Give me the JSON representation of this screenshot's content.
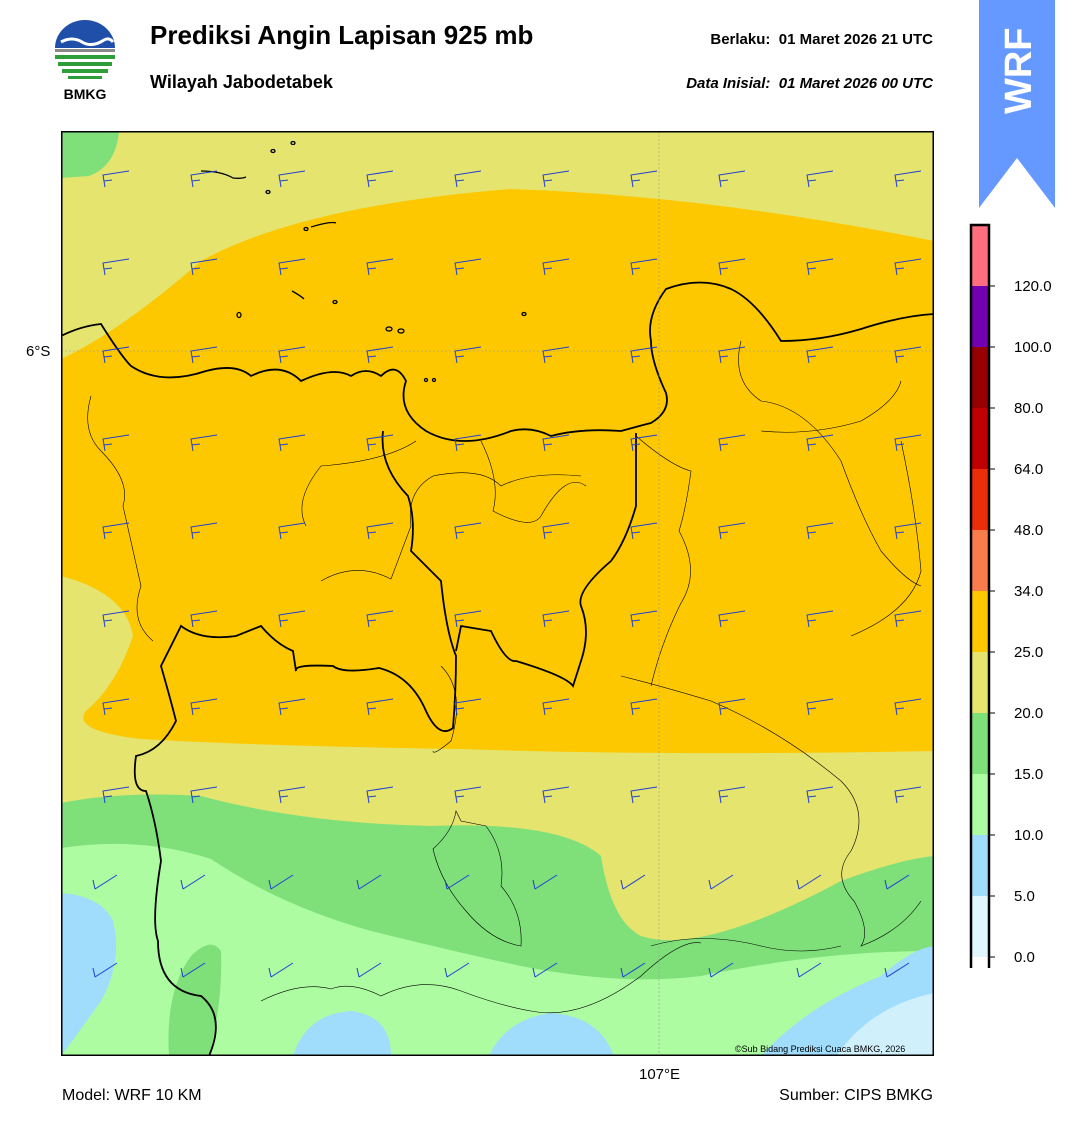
{
  "header": {
    "title": "Prediksi Angin Lapisan 925 mb",
    "subtitle": "Wilayah Jabodetabek",
    "valid_label": "Berlaku:",
    "valid_time": "01 Maret 2026 21 UTC",
    "init_label": "Data Inisial:",
    "init_time": "01 Maret 2026 00 UTC"
  },
  "logo": {
    "text": "BMKG",
    "icon": "bmkg-logo",
    "colors": {
      "blue": "#1f4fa8",
      "green": "#2e9e3a",
      "gray": "#8a8a8a"
    }
  },
  "model_tab": {
    "text": "WRF",
    "color": "#6699ff"
  },
  "map": {
    "lat_label": "6°S",
    "lon_label": "107°E",
    "credit": "©Sub Bidang Prediksi Cuaca BMKG, 2026",
    "wind_barb_color": "#1e3fd6",
    "gridline_color": "#9a9a9a",
    "zone_colors": {
      "yellow": "#e4e46e",
      "orange": "#fdc800",
      "green": "#7fe07a",
      "lightgreen": "#adfca1",
      "lightblue": "#a0dcfc",
      "paleblue": "#d0f0fc"
    },
    "boundary_color": "#000000"
  },
  "colorbar": {
    "ticks": [
      "0.0",
      "5.0",
      "10.0",
      "15.0",
      "20.0",
      "25.0",
      "34.0",
      "48.0",
      "64.0",
      "80.0",
      "100.0",
      "120.0"
    ],
    "colors": [
      "#ffffff",
      "#e1f7fe",
      "#a0dcfc",
      "#adfca1",
      "#7fe07a",
      "#e4e46e",
      "#fdc800",
      "#f87c4c",
      "#ec2d0a",
      "#c00000",
      "#960000",
      "#7000b0",
      "#ff6d7f"
    ]
  },
  "footer": {
    "model": "Model: WRF 10 KM",
    "source": "Sumber: CIPS BMKG"
  }
}
